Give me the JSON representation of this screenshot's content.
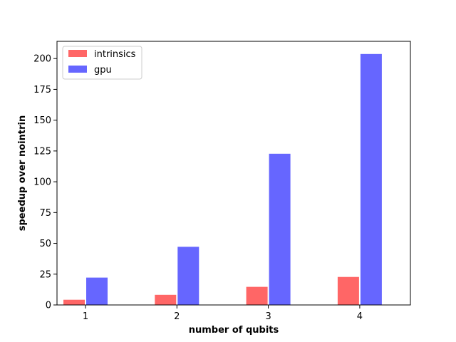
{
  "chart_data": {
    "type": "bar",
    "title": "",
    "xlabel": "number of qubits",
    "ylabel": "speedup over nointrin",
    "categories": [
      "1",
      "2",
      "3",
      "4"
    ],
    "series": [
      {
        "name": "intrinsics",
        "color": "#ff6666",
        "values": [
          4.5,
          8.5,
          15,
          23
        ]
      },
      {
        "name": "gpu",
        "color": "#6666ff",
        "values": [
          22.5,
          47.5,
          123,
          204
        ]
      }
    ],
    "ylim": [
      0,
      214
    ],
    "yticks": [
      0,
      25,
      50,
      75,
      100,
      125,
      150,
      175,
      200
    ],
    "grid": false,
    "legend_position": "top-left"
  }
}
